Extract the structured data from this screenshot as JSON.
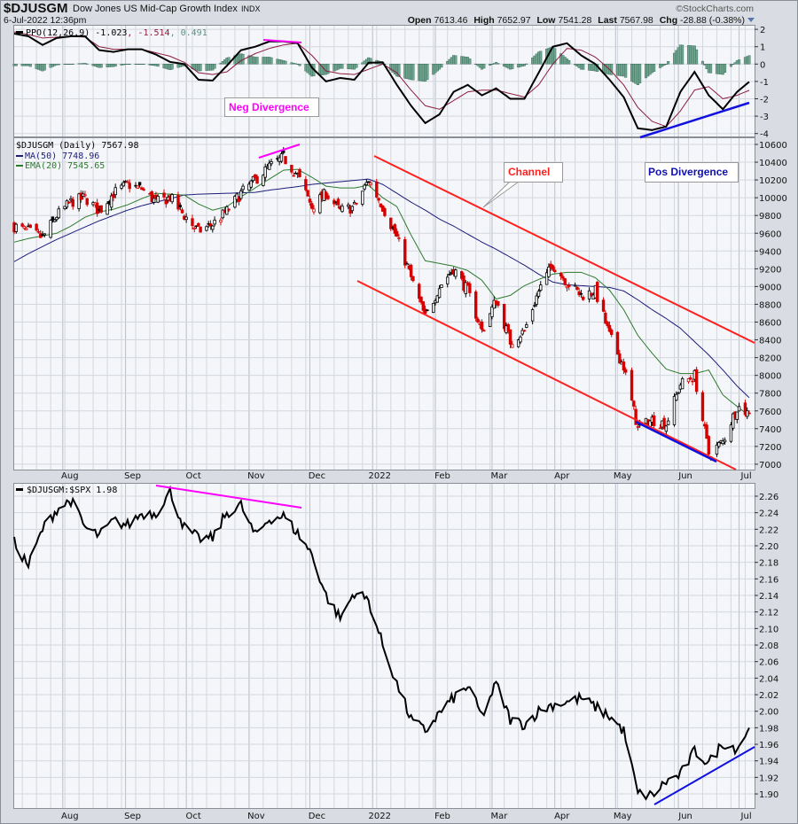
{
  "header": {
    "symbol": "$DJUSGM",
    "name": "Dow Jones US Mid-Cap Growth Index",
    "exchange": "INDX",
    "datetime": "6-Jul-2022 12:36pm",
    "brand": "©StockCharts.com",
    "open_label": "Open",
    "open": "7613.46",
    "high_label": "High",
    "high": "7652.97",
    "low_label": "Low",
    "low": "7541.28",
    "last_label": "Last",
    "last": "7567.98",
    "chg_label": "Chg",
    "chg": "-28.88 (-0.38%)"
  },
  "colors": {
    "panel_bg": "#f4f6fa",
    "grid": "#d3d7de",
    "grid_major": "#b9bdc6",
    "up": "#000000",
    "down": "#d40000",
    "ma50": "#1c1c7a",
    "ema20": "#2d7a2d",
    "ppo": "#000000",
    "signal": "#8b1a3a",
    "hist": "#6fa58f",
    "channel": "#ff2020",
    "neg_div": "#ff00ff",
    "pos_div": "#1010e0"
  },
  "annotations": {
    "neg_divergence": "Neg Divergence",
    "channel": "Channel",
    "pos_divergence": "Pos Divergence"
  },
  "months": [
    "Aug",
    "Sep",
    "Oct",
    "Nov",
    "Dec",
    "2022",
    "Feb",
    "Mar",
    "Apr",
    "May",
    "Jun",
    "Jul"
  ],
  "chart_data": [
    {
      "type": "line",
      "panel": "ppo",
      "legend": {
        "name": "PPO(12,26,9)",
        "ppo": "-1.023",
        "signal": ", -1.514",
        "hist": ", 0.491"
      },
      "ylim": [
        -4,
        2
      ],
      "yticks": [
        "2",
        "1",
        "0",
        "-1",
        "-2",
        "-3",
        "-4"
      ],
      "grid": true,
      "dates": [
        "2021-07-08",
        "2021-07-15",
        "2021-07-22",
        "2021-07-29",
        "2021-08-05",
        "2021-08-12",
        "2021-08-19",
        "2021-08-26",
        "2021-09-02",
        "2021-09-09",
        "2021-09-16",
        "2021-09-23",
        "2021-09-30",
        "2021-10-07",
        "2021-10-14",
        "2021-10-21",
        "2021-10-28",
        "2021-11-04",
        "2021-11-11",
        "2021-11-18",
        "2021-11-25",
        "2021-12-02",
        "2021-12-09",
        "2021-12-16",
        "2021-12-23",
        "2021-12-30",
        "2022-01-06",
        "2022-01-13",
        "2022-01-20",
        "2022-01-27",
        "2022-02-03",
        "2022-02-10",
        "2022-02-17",
        "2022-02-24",
        "2022-03-03",
        "2022-03-10",
        "2022-03-17",
        "2022-03-24",
        "2022-03-31",
        "2022-04-07",
        "2022-04-14",
        "2022-04-21",
        "2022-04-28",
        "2022-05-05",
        "2022-05-12",
        "2022-05-19",
        "2022-05-26",
        "2022-06-02",
        "2022-06-09",
        "2022-06-16",
        "2022-06-23",
        "2022-06-30",
        "2022-07-06"
      ],
      "series": [
        {
          "name": "PPO",
          "values": [
            1.75,
            1.6,
            1.1,
            1.5,
            1.6,
            1.6,
            0.8,
            0.7,
            0.85,
            0.85,
            0.55,
            0.12,
            0.0,
            -0.9,
            -0.95,
            -0.1,
            0.8,
            1.0,
            1.3,
            1.3,
            1.2,
            -0.2,
            -1.0,
            -0.8,
            -0.9,
            0.07,
            0.1,
            -1.2,
            -2.4,
            -3.4,
            -2.9,
            -1.6,
            -1.2,
            -1.8,
            -1.4,
            -2.0,
            -2.0,
            -0.5,
            1.0,
            1.2,
            0.5,
            0.0,
            -0.9,
            -1.9,
            -3.7,
            -3.8,
            -3.6,
            -1.6,
            -0.45,
            -1.8,
            -2.6,
            -1.6,
            -1.023
          ]
        },
        {
          "name": "Signal",
          "values": [
            1.85,
            1.7,
            1.5,
            1.55,
            1.6,
            1.55,
            1.0,
            0.85,
            0.85,
            0.85,
            0.65,
            0.45,
            0.1,
            -0.5,
            -0.6,
            -0.45,
            0.2,
            0.6,
            0.9,
            1.1,
            1.2,
            0.5,
            -0.4,
            -0.55,
            -0.6,
            -0.3,
            0.0,
            -0.5,
            -1.5,
            -2.4,
            -2.6,
            -2.1,
            -1.6,
            -1.5,
            -1.5,
            -1.7,
            -1.9,
            -1.2,
            0.0,
            0.9,
            0.8,
            0.4,
            -0.3,
            -1.2,
            -2.5,
            -3.3,
            -3.6,
            -2.7,
            -1.5,
            -1.3,
            -2.0,
            -1.8,
            -1.514
          ]
        }
      ]
    },
    {
      "type": "candlestick",
      "panel": "price",
      "legend": {
        "name": "$DJUSGM (Daily) 7567.98",
        "ma": "MA(50) 7748.96",
        "ema": "EMA(20) 7545.65"
      },
      "ylim": [
        7000,
        10600
      ],
      "yticks": [
        "10600",
        "10400",
        "10200",
        "10000",
        "9800",
        "9600",
        "9400",
        "9200",
        "9000",
        "8800",
        "8600",
        "8400",
        "8200",
        "8000",
        "7800",
        "7600",
        "7400",
        "7200",
        "7000"
      ],
      "grid": true,
      "dates": [
        "2021-07-08",
        "2021-07-15",
        "2021-07-22",
        "2021-07-29",
        "2021-08-05",
        "2021-08-12",
        "2021-08-19",
        "2021-08-26",
        "2021-09-02",
        "2021-09-09",
        "2021-09-16",
        "2021-09-23",
        "2021-09-30",
        "2021-10-07",
        "2021-10-14",
        "2021-10-21",
        "2021-10-28",
        "2021-11-04",
        "2021-11-11",
        "2021-11-18",
        "2021-11-25",
        "2021-12-02",
        "2021-12-09",
        "2021-12-16",
        "2021-12-23",
        "2021-12-30",
        "2022-01-06",
        "2022-01-13",
        "2022-01-20",
        "2022-01-27",
        "2022-02-03",
        "2022-02-10",
        "2022-02-17",
        "2022-02-24",
        "2022-03-03",
        "2022-03-10",
        "2022-03-17",
        "2022-03-24",
        "2022-03-31",
        "2022-04-07",
        "2022-04-14",
        "2022-04-21",
        "2022-04-28",
        "2022-05-05",
        "2022-05-12",
        "2022-05-19",
        "2022-05-26",
        "2022-06-02",
        "2022-06-09",
        "2022-06-16",
        "2022-06-23",
        "2022-06-30",
        "2022-07-06"
      ],
      "series": [
        {
          "name": "$DJUSGM",
          "values": [
            9680,
            9620,
            9550,
            9800,
            9950,
            10000,
            9850,
            10050,
            10150,
            10100,
            9950,
            10000,
            9800,
            9620,
            9700,
            9850,
            10050,
            10200,
            10350,
            10450,
            10250,
            9900,
            10050,
            9850,
            9900,
            10200,
            9900,
            9550,
            9100,
            8650,
            9000,
            9200,
            8950,
            8500,
            8850,
            8380,
            8500,
            8950,
            9250,
            9050,
            8900,
            8950,
            8450,
            8100,
            7400,
            7500,
            7450,
            7900,
            8000,
            7120,
            7250,
            7650,
            7567.98
          ]
        },
        {
          "name": "MA(50)",
          "values": [
            9280,
            9370,
            9450,
            9530,
            9600,
            9670,
            9740,
            9800,
            9860,
            9910,
            9950,
            9990,
            10030,
            10040,
            10045,
            10050,
            10055,
            10060,
            10085,
            10105,
            10125,
            10150,
            10165,
            10180,
            10195,
            10210,
            10150,
            10050,
            9950,
            9860,
            9760,
            9680,
            9590,
            9500,
            9420,
            9330,
            9240,
            9140,
            9050,
            9020,
            9010,
            9000,
            8990,
            8950,
            8850,
            8740,
            8640,
            8530,
            8380,
            8230,
            8060,
            7880,
            7748.96
          ]
        },
        {
          "name": "EMA(20)",
          "values": [
            9500,
            9540,
            9570,
            9600,
            9680,
            9780,
            9840,
            9870,
            9920,
            9990,
            10050,
            10040,
            10030,
            9930,
            9860,
            9900,
            10010,
            10110,
            10210,
            10310,
            10320,
            10230,
            10130,
            10110,
            10110,
            10140,
            10000,
            9900,
            9580,
            9290,
            9260,
            9230,
            9180,
            9070,
            8860,
            8900,
            9010,
            9080,
            9140,
            9160,
            9160,
            9100,
            8960,
            8740,
            8450,
            8250,
            8070,
            8020,
            8020,
            8060,
            7780,
            7650,
            7545.65
          ]
        }
      ]
    },
    {
      "type": "line",
      "panel": "ratio",
      "legend": {
        "name": "$DJUSGM:$SPX 1.98"
      },
      "ylim": [
        1.89,
        2.27
      ],
      "yticks": [
        "2.26",
        "2.24",
        "2.22",
        "2.20",
        "2.18",
        "2.16",
        "2.14",
        "2.12",
        "2.10",
        "2.08",
        "2.06",
        "2.04",
        "2.02",
        "2.00",
        "1.98",
        "1.96",
        "1.94",
        "1.92",
        "1.90"
      ],
      "grid": true,
      "dates": [
        "2021-07-08",
        "2021-07-15",
        "2021-07-22",
        "2021-07-29",
        "2021-08-05",
        "2021-08-12",
        "2021-08-19",
        "2021-08-26",
        "2021-09-02",
        "2021-09-09",
        "2021-09-16",
        "2021-09-23",
        "2021-09-30",
        "2021-10-07",
        "2021-10-14",
        "2021-10-21",
        "2021-10-28",
        "2021-11-04",
        "2021-11-11",
        "2021-11-18",
        "2021-11-25",
        "2021-12-02",
        "2021-12-09",
        "2021-12-16",
        "2021-12-23",
        "2021-12-30",
        "2022-01-06",
        "2022-01-13",
        "2022-01-20",
        "2022-01-27",
        "2022-02-03",
        "2022-02-10",
        "2022-02-17",
        "2022-02-24",
        "2022-03-03",
        "2022-03-10",
        "2022-03-17",
        "2022-03-24",
        "2022-03-31",
        "2022-04-07",
        "2022-04-14",
        "2022-04-21",
        "2022-04-28",
        "2022-05-05",
        "2022-05-12",
        "2022-05-19",
        "2022-05-26",
        "2022-06-02",
        "2022-06-09",
        "2022-06-16",
        "2022-06-23",
        "2022-06-30",
        "2022-07-06"
      ],
      "series": [
        {
          "name": "$DJUSGM:$SPX",
          "values": [
            2.204,
            2.176,
            2.22,
            2.244,
            2.255,
            2.222,
            2.212,
            2.23,
            2.225,
            2.239,
            2.24,
            2.265,
            2.222,
            2.209,
            2.209,
            2.24,
            2.249,
            2.212,
            2.233,
            2.236,
            2.215,
            2.19,
            2.14,
            2.112,
            2.144,
            2.134,
            2.08,
            2.033,
            1.99,
            1.976,
            1.998,
            2.016,
            2.03,
            1.994,
            2.033,
            1.99,
            1.984,
            2.0,
            2.008,
            2.011,
            2.016,
            2.005,
            1.994,
            1.976,
            1.9,
            1.898,
            1.915,
            1.923,
            1.952,
            1.937,
            1.962,
            1.955,
            1.98
          ]
        }
      ]
    }
  ]
}
